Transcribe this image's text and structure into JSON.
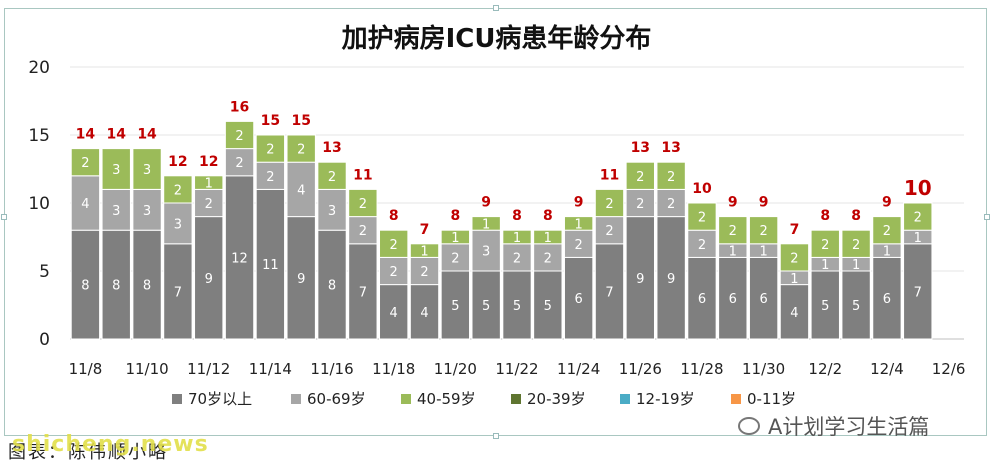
{
  "chart_data": {
    "type": "bar",
    "stacked": true,
    "title": "加护病房ICU病患年龄分布",
    "categories": [
      "11/8",
      "11/9",
      "11/10",
      "11/11",
      "11/12",
      "11/13",
      "11/14",
      "11/15",
      "11/16",
      "11/17",
      "11/18",
      "11/19",
      "11/20",
      "11/21",
      "11/22",
      "11/23",
      "11/24",
      "11/25",
      "11/26",
      "11/27",
      "11/28",
      "11/29",
      "11/30",
      "12/1",
      "12/2",
      "12/3",
      "12/4",
      "12/5",
      "12/6"
    ],
    "x_tick_labels": [
      "11/8",
      "11/10",
      "11/12",
      "11/14",
      "11/16",
      "11/18",
      "11/20",
      "11/22",
      "11/24",
      "11/26",
      "11/28",
      "11/30",
      "12/2",
      "12/4",
      "12/6"
    ],
    "ylim": [
      0,
      20
    ],
    "y_ticks": [
      0,
      5,
      10,
      15,
      20
    ],
    "grid": true,
    "legend_position": "bottom",
    "series": [
      {
        "name": "70岁以上",
        "color": "#7f7f7f",
        "values": [
          8,
          8,
          8,
          7,
          9,
          12,
          11,
          9,
          8,
          7,
          4,
          4,
          5,
          5,
          5,
          5,
          6,
          7,
          9,
          9,
          6,
          6,
          6,
          4,
          5,
          5,
          6,
          7,
          null
        ]
      },
      {
        "name": "60-69岁",
        "color": "#a6a6a6",
        "values": [
          4,
          3,
          3,
          3,
          2,
          2,
          2,
          4,
          3,
          2,
          2,
          2,
          2,
          3,
          2,
          2,
          2,
          2,
          2,
          2,
          2,
          1,
          1,
          1,
          1,
          1,
          1,
          1,
          null
        ]
      },
      {
        "name": "40-59岁",
        "color": "#9bbb59",
        "values": [
          2,
          3,
          3,
          2,
          1,
          2,
          2,
          2,
          2,
          2,
          2,
          1,
          1,
          1,
          1,
          1,
          1,
          2,
          2,
          2,
          2,
          2,
          2,
          2,
          2,
          2,
          2,
          2,
          null
        ]
      },
      {
        "name": "20-39岁",
        "color": "#5f7530",
        "values": [
          0,
          0,
          0,
          0,
          0,
          0,
          0,
          0,
          0,
          0,
          0,
          0,
          0,
          0,
          0,
          0,
          0,
          0,
          0,
          0,
          0,
          0,
          0,
          0,
          0,
          0,
          0,
          0,
          null
        ]
      },
      {
        "name": "12-19岁",
        "color": "#4bacc6",
        "values": [
          0,
          0,
          0,
          0,
          0,
          0,
          0,
          0,
          0,
          0,
          0,
          0,
          0,
          0,
          0,
          0,
          0,
          0,
          0,
          0,
          0,
          0,
          0,
          0,
          0,
          0,
          0,
          0,
          null
        ]
      },
      {
        "name": "0-11岁",
        "color": "#f79646",
        "values": [
          0,
          0,
          0,
          0,
          0,
          0,
          0,
          0,
          0,
          0,
          0,
          0,
          0,
          0,
          0,
          0,
          0,
          0,
          0,
          0,
          0,
          0,
          0,
          0,
          0,
          0,
          0,
          0,
          null
        ]
      }
    ],
    "totals": [
      14,
      14,
      14,
      12,
      12,
      16,
      15,
      15,
      13,
      11,
      8,
      7,
      8,
      9,
      8,
      8,
      9,
      11,
      13,
      13,
      10,
      9,
      9,
      7,
      8,
      8,
      9,
      10,
      null
    ],
    "total_label_color": "#c00000"
  },
  "watermark": {
    "text": "A计划学习生活篇"
  },
  "caption": {
    "text": "图表：陈伟顺小略"
  },
  "site_mark": {
    "text": "shicheng.news"
  }
}
